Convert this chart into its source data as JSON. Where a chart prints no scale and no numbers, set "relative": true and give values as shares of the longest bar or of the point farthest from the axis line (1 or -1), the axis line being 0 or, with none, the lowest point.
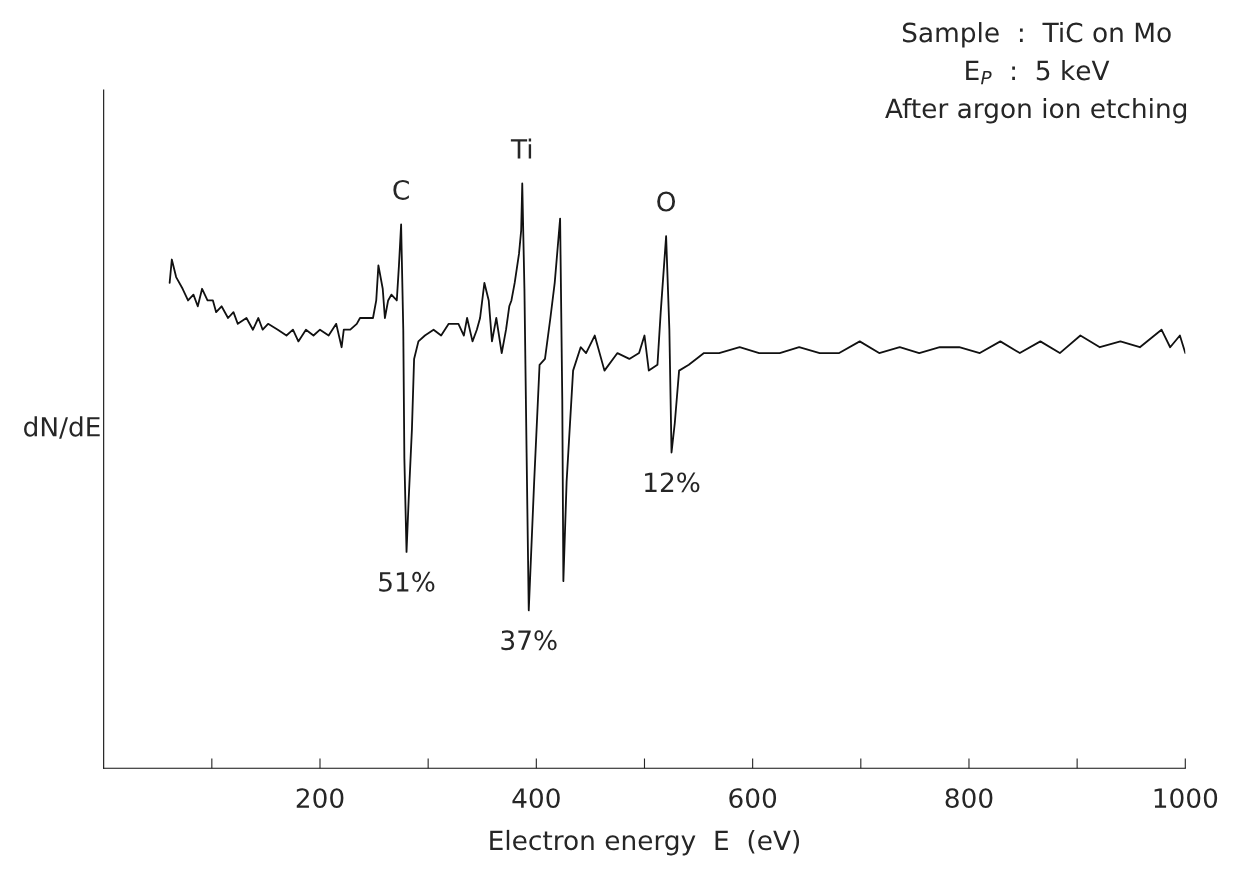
{
  "chart_data": {
    "type": "line",
    "relative": true,
    "xlabel": "Electron energy  E  (eV)",
    "ylabel": "dN/dE",
    "xlim": [
      0,
      1000
    ],
    "xticks": [
      {
        "value": 100,
        "label": null
      },
      200,
      {
        "value": 300,
        "label": null
      },
      400,
      {
        "value": 500,
        "label": null
      },
      600,
      {
        "value": 700,
        "label": null
      },
      800,
      {
        "value": 900,
        "label": null
      },
      1000
    ],
    "grid": false,
    "marker": "none",
    "line_style": "solid",
    "annotations": [
      "Sample  :  TiC on Mo",
      "E$_{P}$  :  5 keV",
      "After argon ion etching",
      {
        "text": "C",
        "x": 275,
        "y": 0.93
      },
      {
        "text": "Ti",
        "x": 387,
        "y": 1.0
      },
      {
        "text": "O",
        "x": 520,
        "y": 0.91
      },
      {
        "text": "51%",
        "x": 280,
        "y": 0.37
      },
      {
        "text": "37%",
        "x": 393,
        "y": 0.27
      },
      {
        "text": "12%",
        "x": 525,
        "y": 0.54
      }
    ],
    "series": [
      {
        "color": "#111111",
        "x": [
          61,
          63,
          67,
          73,
          78,
          83,
          87,
          91,
          96,
          101,
          104,
          109,
          115,
          120,
          124,
          132,
          138,
          143,
          147,
          152,
          161,
          169,
          175,
          180,
          187,
          194,
          200,
          208,
          215,
          220,
          222,
          228,
          234,
          237,
          243,
          249,
          252,
          254,
          258,
          260,
          263,
          266,
          271,
          273,
          275,
          277,
          278,
          280,
          282,
          285,
          287,
          291,
          297,
          305,
          312,
          319,
          328,
          333,
          336,
          341,
          345,
          348,
          352,
          356,
          359,
          363,
          368,
          372,
          375,
          377,
          380,
          384,
          386,
          387,
          389,
          391,
          393,
          398,
          403,
          408,
          413,
          417,
          422,
          424,
          425,
          428,
          434,
          441,
          446,
          454,
          463,
          475,
          486,
          495,
          500,
          504,
          512,
          515,
          520,
          523,
          525,
          528,
          532,
          541,
          555,
          569,
          588,
          606,
          625,
          643,
          662,
          680,
          699,
          717,
          736,
          754,
          773,
          791,
          810,
          829,
          847,
          866,
          884,
          903,
          921,
          940,
          958,
          978,
          986,
          995,
          1000
        ],
        "values": [
          0.83,
          0.87,
          0.84,
          0.82,
          0.8,
          0.81,
          0.79,
          0.82,
          0.8,
          0.8,
          0.78,
          0.79,
          0.77,
          0.78,
          0.76,
          0.77,
          0.75,
          0.77,
          0.75,
          0.76,
          0.75,
          0.74,
          0.75,
          0.73,
          0.75,
          0.74,
          0.75,
          0.74,
          0.76,
          0.72,
          0.75,
          0.75,
          0.76,
          0.77,
          0.77,
          0.77,
          0.8,
          0.86,
          0.82,
          0.77,
          0.8,
          0.81,
          0.8,
          0.86,
          0.93,
          0.75,
          0.53,
          0.37,
          0.46,
          0.58,
          0.7,
          0.73,
          0.74,
          0.75,
          0.74,
          0.76,
          0.76,
          0.74,
          0.77,
          0.73,
          0.75,
          0.77,
          0.83,
          0.8,
          0.73,
          0.77,
          0.71,
          0.75,
          0.79,
          0.8,
          0.83,
          0.88,
          0.92,
          1.0,
          0.82,
          0.54,
          0.27,
          0.49,
          0.69,
          0.7,
          0.77,
          0.83,
          0.94,
          0.63,
          0.32,
          0.49,
          0.68,
          0.72,
          0.71,
          0.74,
          0.68,
          0.71,
          0.7,
          0.71,
          0.74,
          0.68,
          0.69,
          0.78,
          0.91,
          0.75,
          0.54,
          0.59,
          0.68,
          0.69,
          0.71,
          0.71,
          0.72,
          0.71,
          0.71,
          0.72,
          0.71,
          0.71,
          0.73,
          0.71,
          0.72,
          0.71,
          0.72,
          0.72,
          0.71,
          0.73,
          0.71,
          0.73,
          0.71,
          0.74,
          0.72,
          0.73,
          0.72,
          0.75,
          0.72,
          0.74,
          0.71
        ]
      }
    ]
  }
}
